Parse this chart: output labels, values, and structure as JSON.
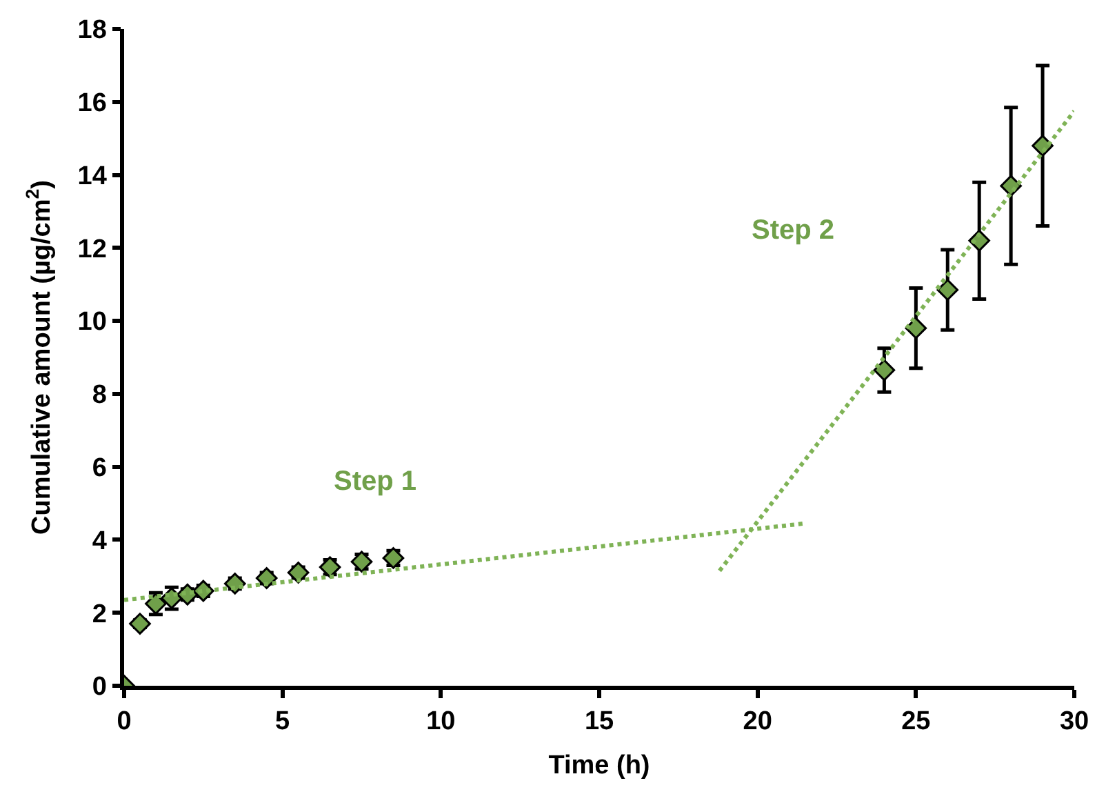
{
  "chart_data": {
    "type": "scatter",
    "xlabel": "Time (h)",
    "ylabel": "Cumulative amount (µg/cm$^{2}$)",
    "xlim": [
      0,
      30
    ],
    "xticks": [
      0,
      5,
      10,
      15,
      20,
      25,
      30
    ],
    "ylim": [
      0,
      18
    ],
    "yticks": [
      0,
      2,
      4,
      6,
      8,
      10,
      12,
      14,
      16,
      18
    ],
    "marker": "diamond",
    "series": [
      {
        "color": "#70a04a",
        "x": [
          0,
          0.5,
          1,
          1.5,
          2,
          2.5,
          3.5,
          4.5,
          5.5,
          6.5,
          7.5,
          8.5,
          24,
          25,
          26,
          27,
          28,
          29
        ],
        "values": [
          0,
          1.7,
          2.25,
          2.4,
          2.5,
          2.6,
          2.8,
          2.95,
          3.1,
          3.25,
          3.4,
          3.5,
          8.65,
          9.8,
          10.85,
          12.2,
          13.7,
          14.8
        ],
        "errors": [
          null,
          0.1,
          0.3,
          0.3,
          0.15,
          0.15,
          0.15,
          0.15,
          0.15,
          0.2,
          0.2,
          0.2,
          0.6,
          1.1,
          1.1,
          1.6,
          2.15,
          2.2
        ]
      },
      {
        "type": "line",
        "color": "#7fb356",
        "line_style": "dotted",
        "marker": "none",
        "x": [
          0,
          21.5
        ],
        "values": [
          2.35,
          4.45
        ]
      },
      {
        "type": "line",
        "color": "#7fb356",
        "line_style": "dotted",
        "marker": "none",
        "x": [
          18.8,
          30
        ],
        "values": [
          3.15,
          15.75
        ]
      }
    ],
    "annotations": [
      "Step 1",
      "Step 2"
    ]
  }
}
